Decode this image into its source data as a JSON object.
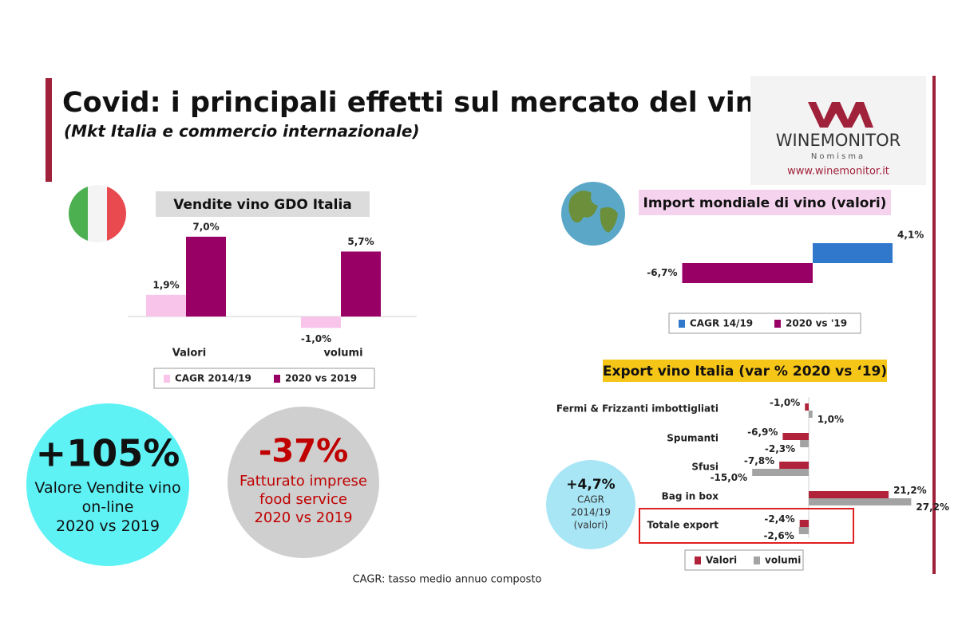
{
  "header": {
    "title": "Covid: i principali effetti sul mercato del vino",
    "subtitle": "(Mkt Italia e commercio internazionale)"
  },
  "logo": {
    "name": "WINEMONITOR",
    "tagline": "Nomisma",
    "url": "www.winemonitor.it"
  },
  "chart_data": [
    {
      "type": "bar",
      "orientation": "vertical",
      "title": "Vendite vino GDO Italia",
      "categories": [
        "Valori",
        "volumi"
      ],
      "series": [
        {
          "name": "CAGR 2014/19",
          "color": "#f9c4ea",
          "values": [
            1.9,
            -1.0
          ],
          "value_labels": [
            "1,9%",
            "-1,0%"
          ]
        },
        {
          "name": "2020 vs 2019",
          "color": "#990066",
          "values": [
            7.0,
            5.7
          ],
          "value_labels": [
            "7,0%",
            "5,7%"
          ]
        }
      ]
    },
    {
      "type": "bar",
      "orientation": "horizontal",
      "title": "Import mondiale di vino (valori)",
      "categories": [
        null
      ],
      "series": [
        {
          "name": "CAGR 14/19",
          "color": "#2f78cc",
          "values": [
            4.1
          ],
          "value_labels": [
            "4,1%"
          ]
        },
        {
          "name": "2020 vs '19",
          "color": "#990066",
          "values": [
            -6.7
          ],
          "value_labels": [
            "-6,7%"
          ]
        }
      ]
    },
    {
      "type": "bar",
      "orientation": "horizontal",
      "title": "Export vino Italia (var % 2020 vs ‘19)",
      "categories": [
        "Fermi & Frizzanti imbottigliati",
        "Spumanti",
        "Sfusi",
        "Bag in box",
        "Totale export"
      ],
      "series": [
        {
          "name": "Valori",
          "color": "#b0233a",
          "values": [
            -1.0,
            -6.9,
            -7.8,
            21.2,
            -2.4
          ],
          "value_labels": [
            "-1,0%",
            "-6,9%",
            "-7,8%",
            "21,2%",
            "-2,4%"
          ]
        },
        {
          "name": "volumi",
          "color": "#a3a3a3",
          "values": [
            1.0,
            -2.3,
            -15.0,
            27.2,
            -2.6
          ],
          "value_labels": [
            "1,0%",
            "-2,3%",
            "-15,0%",
            "27,2%",
            "-2,6%"
          ]
        }
      ]
    }
  ],
  "callouts": [
    {
      "value": "+105%",
      "lines": [
        "Valore Vendite vino",
        "on-line",
        "2020 vs 2019"
      ]
    },
    {
      "value": "-37%",
      "lines": [
        "Fatturato imprese",
        "food service",
        "2020 vs 2019"
      ]
    },
    {
      "value": "+4,7%",
      "lines": [
        "CAGR",
        "2014/19",
        "(valori)"
      ]
    }
  ],
  "footnote": "CAGR: tasso medio annuo composto"
}
